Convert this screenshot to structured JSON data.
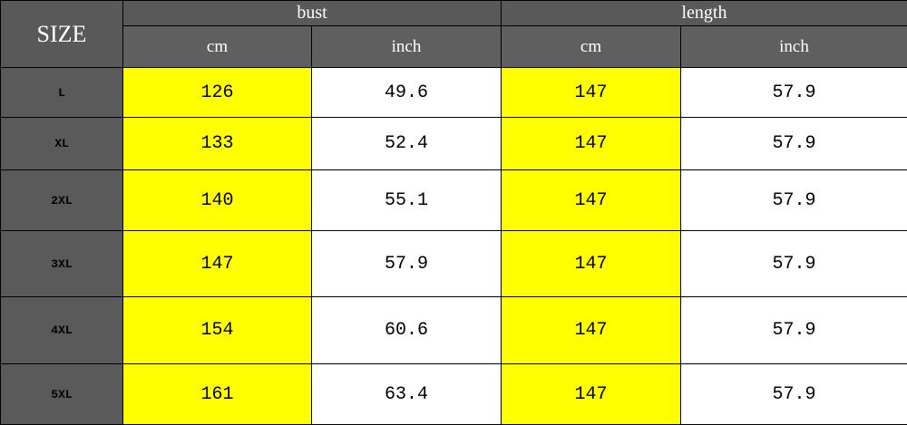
{
  "header": {
    "size": "SIZE",
    "groups": [
      "bust",
      "length"
    ],
    "units": [
      "cm",
      "inch",
      "cm",
      "inch"
    ]
  },
  "rows": [
    {
      "size": "L",
      "values": [
        126,
        49.6,
        147,
        57.9
      ]
    },
    {
      "size": "XL",
      "values": [
        133,
        52.4,
        147,
        57.9
      ]
    },
    {
      "size": "2XL",
      "values": [
        140,
        55.1,
        147,
        57.9
      ]
    },
    {
      "size": "3XL",
      "values": [
        147,
        57.9,
        147,
        57.9
      ]
    },
    {
      "size": "4XL",
      "values": [
        154,
        60.6,
        147,
        57.9
      ]
    },
    {
      "size": "5XL",
      "values": [
        161,
        63.4,
        147,
        57.9
      ]
    }
  ]
}
